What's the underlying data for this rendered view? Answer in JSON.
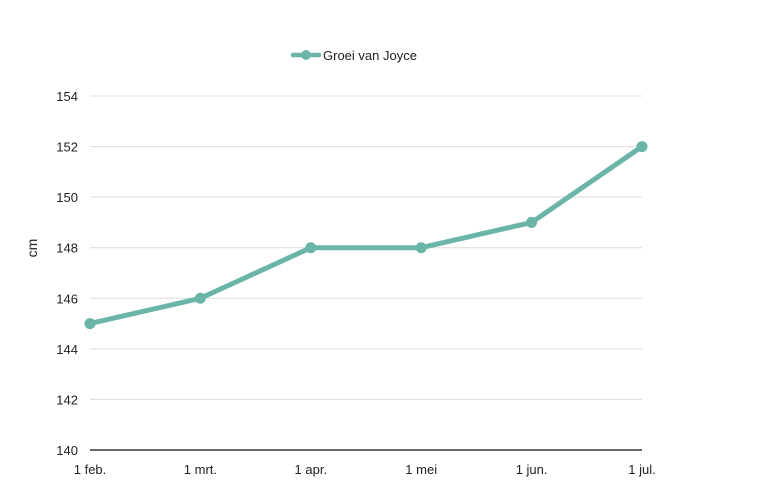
{
  "chart_data": {
    "type": "line",
    "title": "",
    "xlabel": "",
    "ylabel": "cm",
    "categories": [
      "1 feb.",
      "1 mrt.",
      "1 apr.",
      "1 mei",
      "1 jun.",
      "1 jul."
    ],
    "series": [
      {
        "name": "Groei van Joyce",
        "values": [
          145,
          146,
          148,
          148,
          149,
          152
        ],
        "color": "#6bb5a8"
      }
    ],
    "ylim": [
      140,
      154
    ],
    "yticks": [
      140,
      142,
      144,
      146,
      148,
      150,
      152,
      154
    ],
    "grid": true,
    "legend_position": "top"
  },
  "legend": {
    "label": "Groei van Joyce"
  },
  "axis": {
    "ylabel": "cm"
  }
}
